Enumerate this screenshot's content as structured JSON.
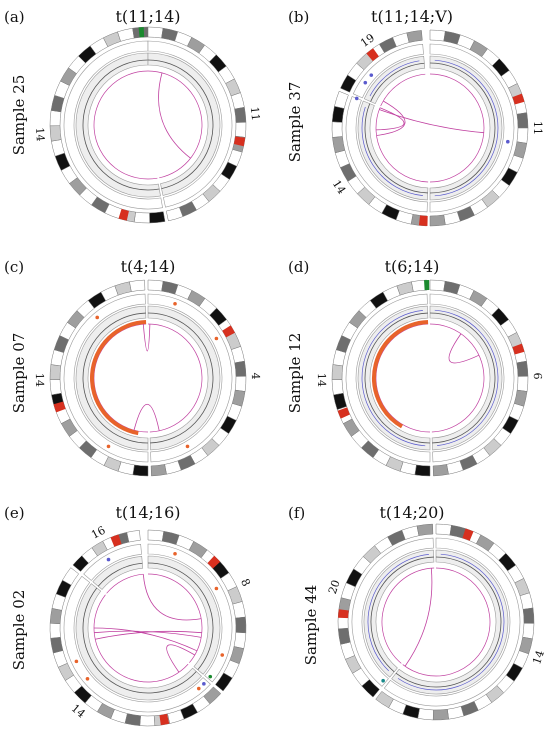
{
  "colors": {
    "band_black": "#111111",
    "band_dark": "#6e6e6e",
    "band_mid": "#9e9e9e",
    "band_light": "#cccccc",
    "band_white": "#ffffff",
    "centromere": "#d7301f",
    "green": "#1a8a2e",
    "track_fill": "#eeeeee",
    "track_stroke": "#9a9a9a",
    "link": "#c040a0",
    "cnv_line": "#5a5acd",
    "orange": "#e8632b"
  },
  "panels": [
    {
      "label": "(a)",
      "title": "t(11;14)",
      "sample": "Sample 25",
      "chromosomes": [
        {
          "name": "14",
          "start": 170,
          "end": 360,
          "centro": 195,
          "green": 356
        },
        {
          "name": "11",
          "start": 0,
          "end": 168,
          "centro": 100
        }
      ],
      "links": [
        {
          "a": 15,
          "b": 128
        }
      ],
      "cnv": false,
      "orange_arc": null,
      "dots": []
    },
    {
      "label": "(b)",
      "title": "t(11;14;V)",
      "sample": "Sample 37",
      "chromosomes": [
        {
          "name": "19",
          "start": 294,
          "end": 355,
          "centro": 322
        },
        {
          "name": "11",
          "start": 0,
          "end": 180,
          "centro": 72
        },
        {
          "name": "14",
          "start": 182,
          "end": 292,
          "centro": 184
        }
      ],
      "links": [
        {
          "a": 292,
          "b": 268
        },
        {
          "a": 290,
          "b": 95
        },
        {
          "a": 300,
          "b": 262
        }
      ],
      "cnv": true,
      "orange_arc": null,
      "dots": [
        {
          "ang": 305,
          "c": "#5a5acd"
        },
        {
          "ang": 312,
          "c": "#5a5acd"
        },
        {
          "ang": 292,
          "c": "#5a5acd"
        },
        {
          "ang": 100,
          "c": "#5a5acd"
        }
      ]
    },
    {
      "label": "(c)",
      "title": "t(4;14)",
      "sample": "Sample 07",
      "chromosomes": [
        {
          "name": "14",
          "start": 180,
          "end": 358,
          "centro": 252,
          "green": null
        },
        {
          "name": "4",
          "start": 0,
          "end": 178,
          "centro": 60
        }
      ],
      "links": [
        {
          "a": 2,
          "b": 355
        },
        {
          "a": 168,
          "b": 195
        }
      ],
      "cnv": false,
      "orange_arc": {
        "start": 190,
        "end": 358
      },
      "dots": [
        {
          "ang": 20,
          "c": "#e8632b"
        },
        {
          "ang": 320,
          "c": "#e8632b"
        },
        {
          "ang": 150,
          "c": "#e8632b"
        },
        {
          "ang": 60,
          "c": "#e8632b"
        },
        {
          "ang": 210,
          "c": "#e8632b"
        }
      ]
    },
    {
      "label": "(d)",
      "title": "t(6;14)",
      "sample": "Sample 12",
      "chromosomes": [
        {
          "name": "14",
          "start": 180,
          "end": 358,
          "centro": 248,
          "green": 358
        },
        {
          "name": "6",
          "start": 0,
          "end": 178,
          "centro": 72
        }
      ],
      "links": [
        {
          "a": 35,
          "b": 65
        }
      ],
      "cnv": true,
      "orange_arc": {
        "start": 210,
        "end": 358
      },
      "dots": []
    },
    {
      "label": "(e)",
      "title": "t(14;16)",
      "sample": "Sample 02",
      "chromosomes": [
        {
          "name": "16",
          "start": 310,
          "end": 355,
          "centro": 340
        },
        {
          "name": "8",
          "start": 0,
          "end": 130,
          "centro": 45
        },
        {
          "name": "14",
          "start": 132,
          "end": 308,
          "centro": 170
        }
      ],
      "links": [
        {
          "a": 355,
          "b": 80
        },
        {
          "a": 265,
          "b": 100
        },
        {
          "a": 270,
          "b": 115
        },
        {
          "a": 258,
          "b": 95
        },
        {
          "a": 120,
          "b": 145
        }
      ],
      "cnv": false,
      "orange_arc": null,
      "dots": [
        {
          "ang": 330,
          "c": "#5a5acd"
        },
        {
          "ang": 20,
          "c": "#e8632b"
        },
        {
          "ang": 110,
          "c": "#e8632b"
        },
        {
          "ang": 135,
          "c": "#5a5acd"
        },
        {
          "ang": 140,
          "c": "#e8632b"
        },
        {
          "ang": 245,
          "c": "#e8632b"
        },
        {
          "ang": 230,
          "c": "#e8632b"
        },
        {
          "ang": 60,
          "c": "#e8632b"
        },
        {
          "ang": 128,
          "c": "#1a8a2e"
        }
      ]
    },
    {
      "label": "(f)",
      "title": "t(14;20)",
      "sample": "Sample 44",
      "chromosomes": [
        {
          "name": "20",
          "start": 220,
          "end": 358,
          "centro": 275
        },
        {
          "name": "14",
          "start": 0,
          "end": 218,
          "centro": 20
        }
      ],
      "links": [
        {
          "a": 355,
          "b": 215
        }
      ],
      "cnv": true,
      "orange_arc": null,
      "dots": [
        {
          "ang": 222,
          "c": "#1a8a8a"
        }
      ]
    }
  ]
}
